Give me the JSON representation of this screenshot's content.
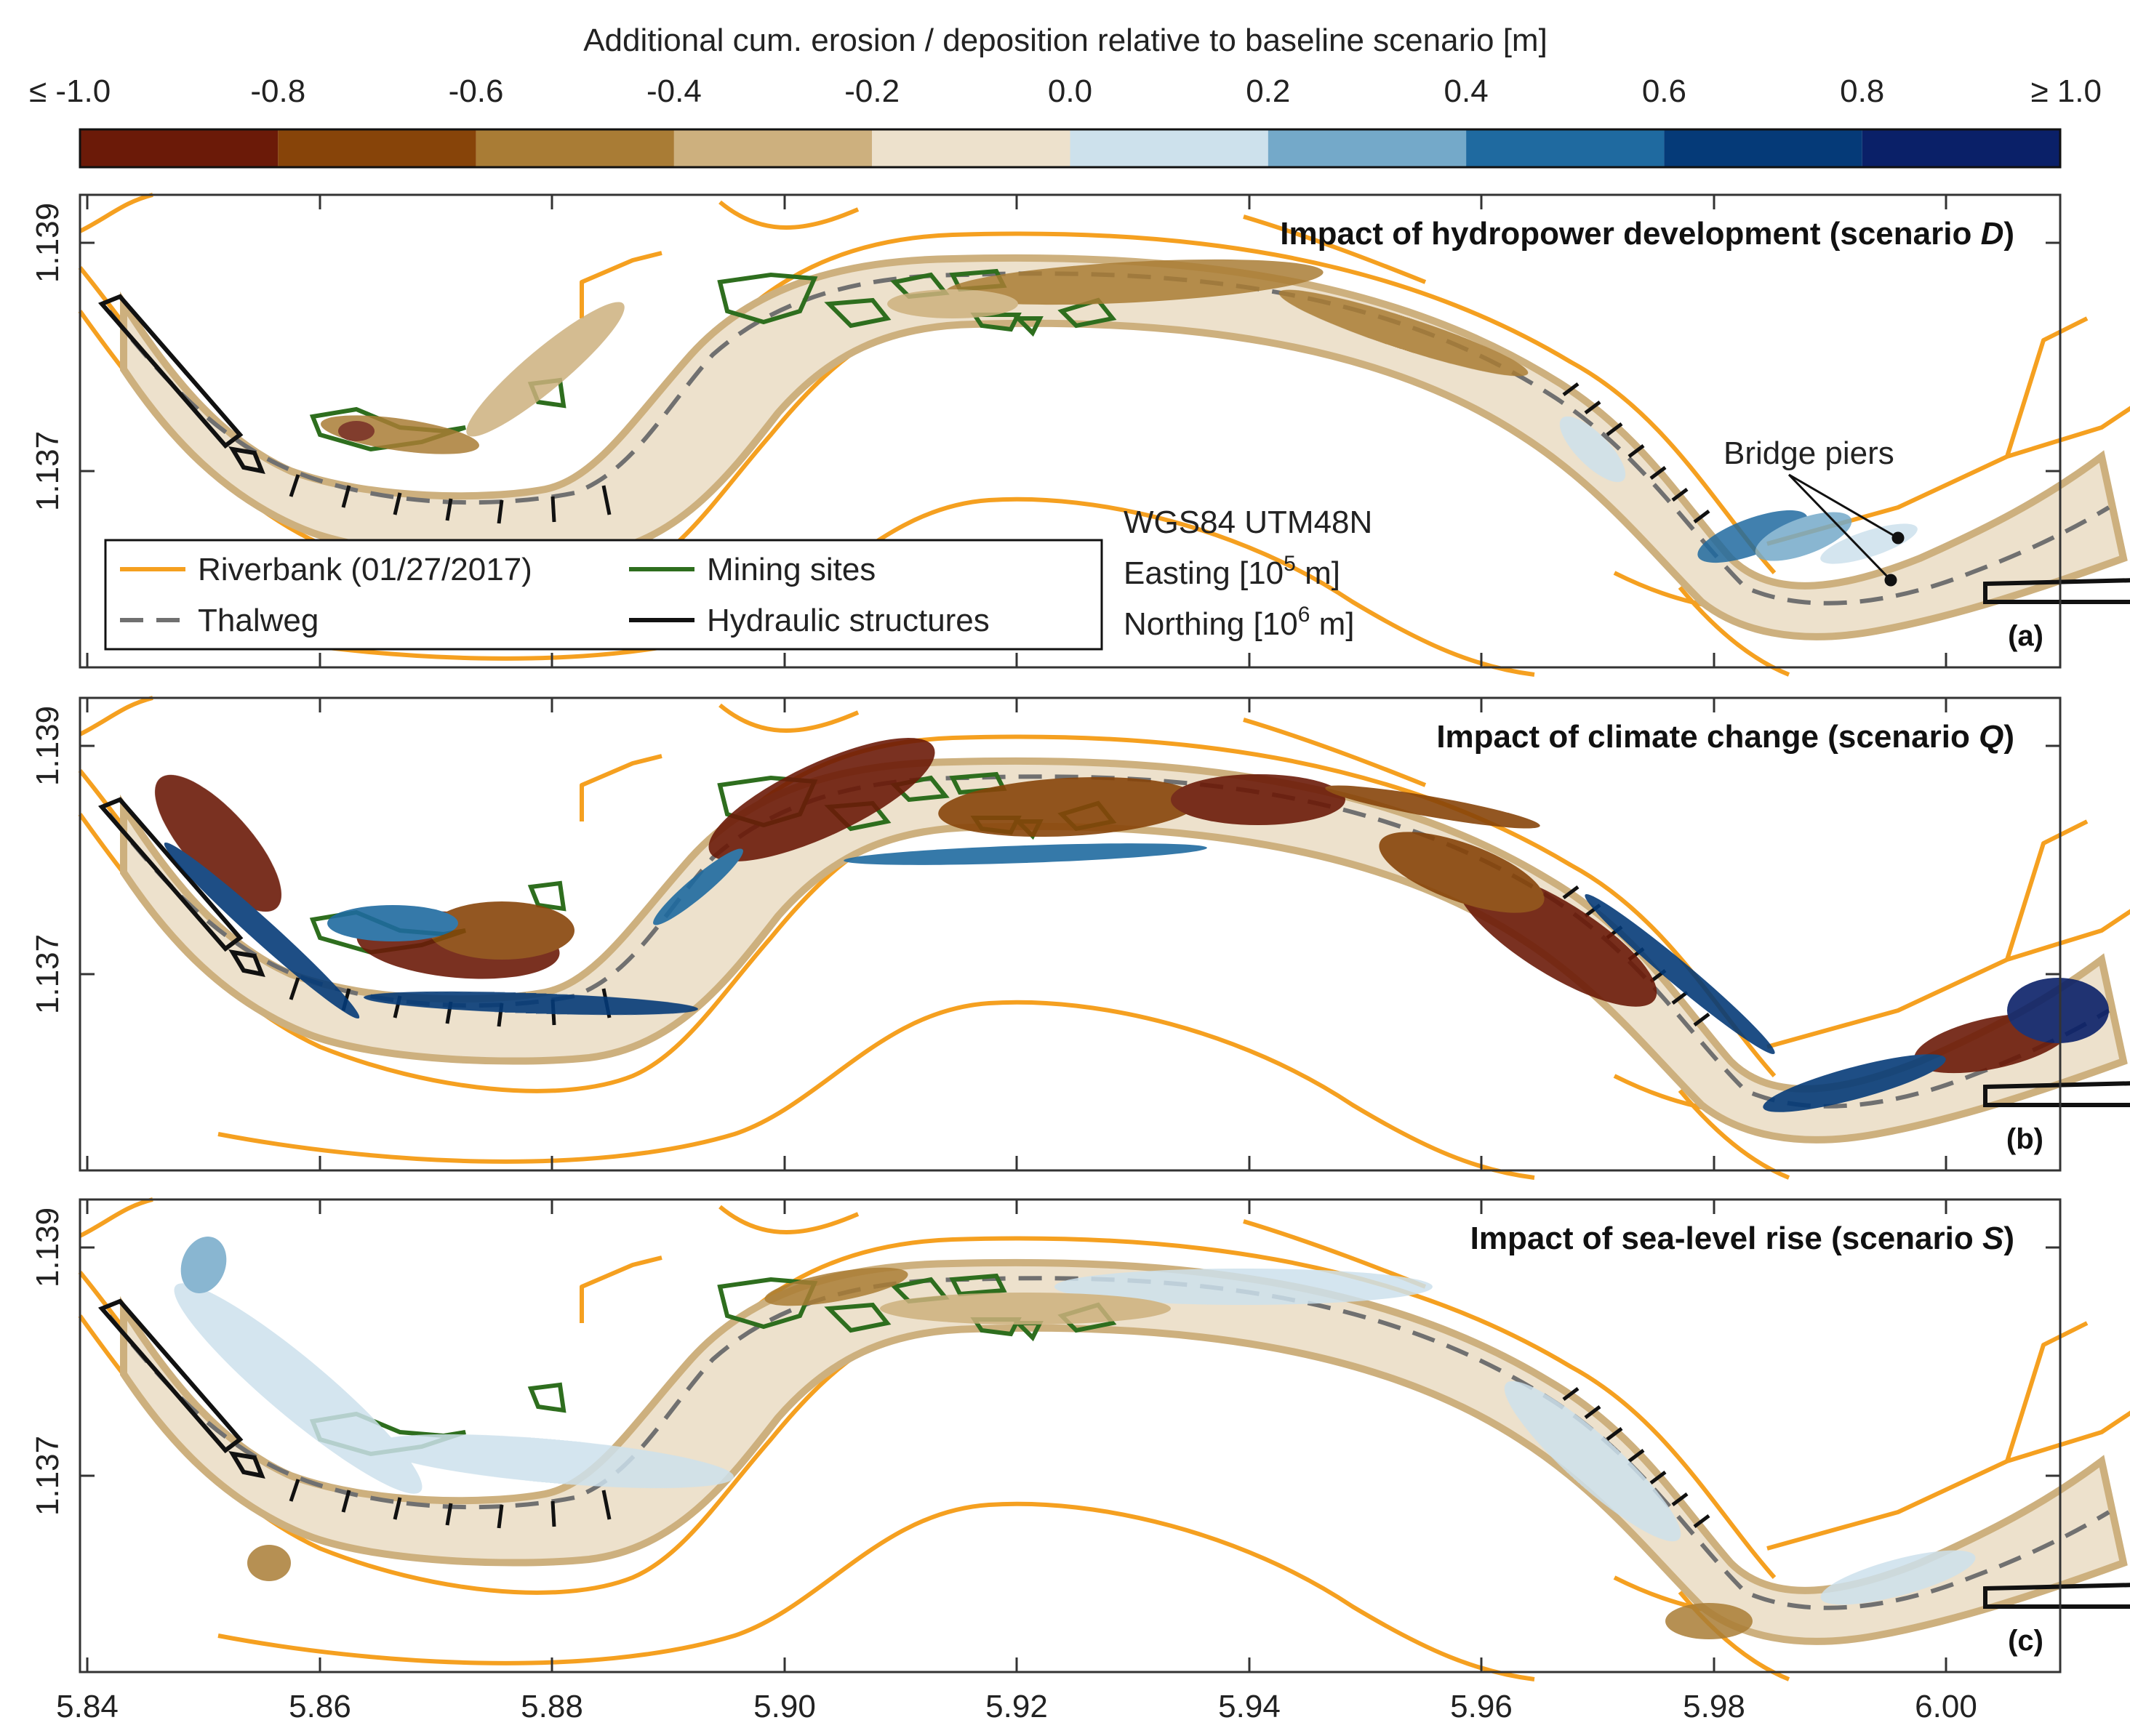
{
  "colorbar": {
    "title": "Additional cum. erosion / deposition relative to baseline scenario [m]",
    "ticks": [
      "≤ -1.0",
      "-0.8",
      "-0.6",
      "-0.4",
      "-0.2",
      "0.0",
      "0.2",
      "0.4",
      "0.6",
      "0.8",
      "≥ 1.0"
    ],
    "colors": [
      "#6b1a08",
      "#874409",
      "#a97c35",
      "#cdb07e",
      "#ede1cc",
      "#cde1ec",
      "#74a9c9",
      "#1f6aa0",
      "#053a78",
      "#0a2068"
    ]
  },
  "colors": {
    "riverbank": "#f5a020",
    "mining": "#2e6e1e",
    "thalweg": "#707070",
    "structures": "#111111",
    "bed": "#ede1cc"
  },
  "axes": {
    "x_ticks": [
      "5.84",
      "5.86",
      "5.88",
      "5.90",
      "5.92",
      "5.94",
      "5.96",
      "5.98",
      "6.00"
    ],
    "y_ticks": [
      "1.139",
      "1.137"
    ]
  },
  "legend": {
    "riverbank": "Riverbank (01/27/2017)",
    "thalweg": "Thalweg",
    "mining": "Mining sites",
    "structures": "Hydraulic structures"
  },
  "crs": {
    "line1": "WGS84 UTM48N",
    "easting_pre": "Easting [10",
    "easting_exp": "5",
    "easting_post": " m]",
    "northing_pre": "Northing [10",
    "northing_exp": "6",
    "northing_post": " m]"
  },
  "annotation": "Bridge piers",
  "panels": [
    {
      "title_pre": "Impact of hydropower development (scenario ",
      "scenario": "D",
      "title_post": ")",
      "label": "(a)"
    },
    {
      "title_pre": "Impact of climate change (scenario ",
      "scenario": "Q",
      "title_post": ")",
      "label": "(b)"
    },
    {
      "title_pre": "Impact of sea-level rise (scenario ",
      "scenario": "S",
      "title_post": ")",
      "label": "(c)"
    }
  ],
  "chart_data": {
    "type": "heatmap",
    "title": "Additional cum. erosion / deposition relative to baseline scenario [m]",
    "xlabel": "Easting [10^5 m]",
    "ylabel": "Northing [10^6 m]",
    "xlim": [
      5.84,
      6.015
    ],
    "ylim": [
      1.1352,
      1.1394
    ],
    "color_range": [
      -1.0,
      1.0
    ],
    "color_step": 0.2,
    "panels": [
      "Impact of hydropower development (scenario D)",
      "Impact of climate change (scenario Q)",
      "Impact of sea-level rise (scenario S)"
    ]
  }
}
